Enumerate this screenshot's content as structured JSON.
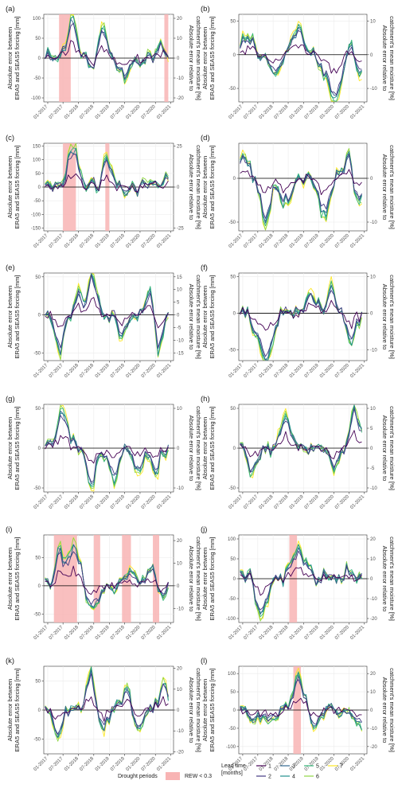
{
  "y_left_label": [
    "Absolute error between",
    "ERA5 and SEAS5 forcing [mm]"
  ],
  "y_right_label": [
    "Absolute error relative to",
    "catchment's mean moisture [%]"
  ],
  "x_ticks": [
    "01-2017",
    "07-2017",
    "01-2018",
    "07-2018",
    "01-2019",
    "07-2019",
    "01-2020",
    "07-2020",
    "01-2021"
  ],
  "legend": {
    "drought_title": "Drought periods",
    "drought_item": "REW < 0.3",
    "lead_title": [
      "Lead time",
      "[months]"
    ],
    "lead_items": [
      "1",
      "2",
      "3",
      "4",
      "5",
      "6",
      "7"
    ]
  },
  "colors": {
    "lead": [
      "#440154",
      "#443a83",
      "#31688e",
      "#21908d",
      "#35b779",
      "#8fd744",
      "#fde725"
    ],
    "drought": "#f8b4b4",
    "grid": "#ebebeb",
    "zero_line": "#000000"
  },
  "chart_data": [
    {
      "type": "line",
      "panel": "(a)",
      "ylim": [
        -110,
        110
      ],
      "yticks": [
        -100,
        -50,
        0,
        50,
        100
      ],
      "y2ticks": [
        -20,
        -10,
        0,
        10,
        20
      ],
      "y2_scale": 0.2,
      "drought_periods": [
        [
          "2017-05-15",
          "2017-10-01"
        ],
        [
          "2020-10-15",
          "2020-12-01"
        ]
      ],
      "peaks": [
        [
          "2017-10-15",
          100
        ],
        [
          "2018-07-15",
          -50
        ],
        [
          "2018-10-01",
          90
        ],
        [
          "2019-07-01",
          -50
        ],
        [
          "2020-09-01",
          40
        ]
      ]
    },
    {
      "type": "line",
      "panel": "(b)",
      "ylim": [
        -70,
        60
      ],
      "yticks": [
        -50,
        0,
        50
      ],
      "y2ticks": [
        -10,
        0,
        10
      ],
      "y2_scale": 0.2,
      "drought_periods": [],
      "peaks": [
        [
          "2017-03-01",
          30
        ],
        [
          "2018-02-01",
          -35
        ],
        [
          "2018-11-01",
          45
        ],
        [
          "2019-10-01",
          -35
        ],
        [
          "2020-02-01",
          -65
        ],
        [
          "2020-08-15",
          30
        ],
        [
          "2020-10-15",
          -40
        ]
      ]
    },
    {
      "type": "line",
      "panel": "(c)",
      "ylim": [
        -160,
        160
      ],
      "yticks": [
        -150,
        -100,
        -50,
        0,
        50,
        100,
        150
      ],
      "y2ticks": [
        -25,
        0,
        25
      ],
      "y2_scale": 0.1667,
      "drought_periods": [
        [
          "2017-07-01",
          "2017-12-01"
        ],
        [
          "2018-11-15",
          "2019-01-01"
        ]
      ],
      "peaks": [
        [
          "2017-11-01",
          155
        ],
        [
          "2018-12-15",
          100
        ],
        [
          "2020-06-01",
          20
        ],
        [
          "2020-11-01",
          40
        ]
      ]
    },
    {
      "type": "line",
      "panel": "(d)",
      "ylim": [
        -60,
        40
      ],
      "yticks": [
        -50,
        0
      ],
      "y2ticks": [
        -10,
        0,
        10
      ],
      "y2_scale": 0.2,
      "drought_periods": [],
      "peaks": [
        [
          "2017-01-15",
          25
        ],
        [
          "2017-10-01",
          -50
        ],
        [
          "2018-06-01",
          -30
        ],
        [
          "2019-09-01",
          -45
        ],
        [
          "2020-07-01",
          25
        ],
        [
          "2020-11-01",
          -35
        ]
      ]
    },
    {
      "type": "line",
      "panel": "(e)",
      "ylim": [
        -60,
        55
      ],
      "yticks": [
        -50,
        0,
        50
      ],
      "y2ticks": [
        -15,
        -10,
        -5,
        0,
        5,
        10,
        15
      ],
      "y2_scale": 0.3,
      "drought_periods": [],
      "peaks": [
        [
          "2017-06-01",
          -45
        ],
        [
          "2018-01-01",
          25
        ],
        [
          "2018-06-15",
          50
        ],
        [
          "2019-06-01",
          -30
        ],
        [
          "2020-05-01",
          40
        ],
        [
          "2020-08-01",
          -50
        ]
      ]
    },
    {
      "type": "line",
      "panel": "(f)",
      "ylim": [
        -65,
        55
      ],
      "yticks": [
        -50,
        0,
        50
      ],
      "y2ticks": [
        -10,
        0,
        10
      ],
      "y2_scale": 0.2,
      "drought_periods": [],
      "peaks": [
        [
          "2017-07-01",
          -30
        ],
        [
          "2017-11-01",
          -62
        ],
        [
          "2019-04-01",
          35
        ],
        [
          "2019-12-01",
          30
        ],
        [
          "2020-08-01",
          -40
        ]
      ]
    },
    {
      "type": "line",
      "panel": "(g)",
      "ylim": [
        -55,
        55
      ],
      "yticks": [
        -50,
        0,
        50
      ],
      "y2ticks": [
        -10,
        0,
        10
      ],
      "y2_scale": 0.2,
      "drought_periods": [],
      "peaks": [
        [
          "2017-07-01",
          50
        ],
        [
          "2018-06-01",
          -48
        ],
        [
          "2019-03-01",
          -35
        ],
        [
          "2019-12-01",
          -35
        ],
        [
          "2020-07-01",
          -30
        ]
      ]
    },
    {
      "type": "line",
      "panel": "(h)",
      "ylim": [
        -55,
        55
      ],
      "yticks": [
        -50,
        0,
        50
      ],
      "y2ticks": [
        -10,
        -5,
        0,
        5,
        10
      ],
      "y2_scale": 0.2,
      "drought_periods": [],
      "peaks": [
        [
          "2017-05-01",
          -30
        ],
        [
          "2018-06-01",
          40
        ],
        [
          "2020-01-01",
          -25
        ],
        [
          "2020-09-15",
          50
        ]
      ]
    },
    {
      "type": "line",
      "panel": "(i)",
      "ylim": [
        -65,
        90
      ],
      "yticks": [
        -50,
        0,
        50
      ],
      "y2ticks": [
        -20,
        -10,
        0,
        10,
        20
      ],
      "y2_scale": 0.25,
      "drought_periods": [
        [
          "2017-03-15",
          "2017-12-15"
        ],
        [
          "2018-07-01",
          "2018-09-15"
        ],
        [
          "2019-06-01",
          "2019-09-15"
        ],
        [
          "2020-06-01",
          "2020-08-15"
        ]
      ],
      "peaks": [
        [
          "2017-06-01",
          60
        ],
        [
          "2017-11-15",
          80
        ],
        [
          "2018-06-15",
          -45
        ],
        [
          "2019-09-01",
          30
        ],
        [
          "2020-06-01",
          35
        ],
        [
          "2020-09-01",
          -25
        ]
      ]
    },
    {
      "type": "line",
      "panel": "(j)",
      "ylim": [
        -110,
        110
      ],
      "yticks": [
        -100,
        -50,
        0,
        50,
        100
      ],
      "y2ticks": [
        -20,
        -10,
        0,
        10,
        20
      ],
      "y2_scale": 0.2,
      "drought_periods": [
        [
          "2018-07-15",
          "2018-10-15"
        ]
      ],
      "peaks": [
        [
          "2017-03-01",
          15
        ],
        [
          "2017-08-15",
          -105
        ],
        [
          "2018-10-01",
          70
        ],
        [
          "2019-02-01",
          40
        ],
        [
          "2020-07-01",
          20
        ]
      ]
    },
    {
      "type": "line",
      "panel": "(k)",
      "ylim": [
        -75,
        75
      ],
      "yticks": [
        -50,
        0,
        50
      ],
      "y2ticks": [
        -20,
        -10,
        0,
        10,
        20
      ],
      "y2_scale": 0.28,
      "drought_periods": [],
      "peaks": [
        [
          "2017-05-01",
          -35
        ],
        [
          "2018-06-01",
          65
        ],
        [
          "2018-10-01",
          -40
        ],
        [
          "2019-08-01",
          40
        ],
        [
          "2019-12-01",
          -40
        ],
        [
          "2020-10-01",
          40
        ]
      ]
    },
    {
      "type": "line",
      "panel": "(l)",
      "ylim": [
        -120,
        120
      ],
      "yticks": [
        -100,
        -50,
        0,
        50,
        100
      ],
      "y2ticks": [
        -20,
        -10,
        0,
        10,
        20
      ],
      "y2_scale": 0.2,
      "drought_periods": [
        [
          "2018-09-01",
          "2018-12-01"
        ]
      ],
      "peaks": [
        [
          "2017-06-01",
          -30
        ],
        [
          "2017-12-01",
          -40
        ],
        [
          "2018-11-01",
          95
        ],
        [
          "2019-06-01",
          -40
        ],
        [
          "2020-11-01",
          -45
        ]
      ]
    }
  ]
}
